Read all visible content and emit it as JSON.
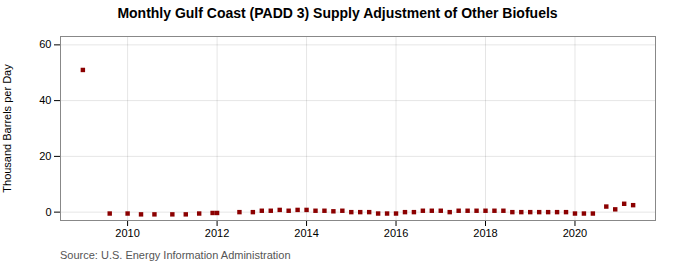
{
  "chart_data": {
    "type": "scatter",
    "title": "Monthly Gulf Coast (PADD 3) Supply Adjustment of Other Biofuels",
    "ylabel": "Thousand Barrels per Day",
    "caption": "Source: U.S. Energy Information Administration",
    "color": "#8b0000",
    "marker": "square",
    "grid": true,
    "xlim": [
      2008.5,
      2021.8
    ],
    "xticks": [
      2010,
      2012,
      2014,
      2016,
      2018,
      2020
    ],
    "ylim": [
      -3,
      63
    ],
    "yticks": [
      0,
      20,
      40,
      60
    ],
    "x": [
      2009.0,
      2009.6,
      2010.0,
      2010.3,
      2010.6,
      2011.0,
      2011.3,
      2011.6,
      2011.9,
      2012.0,
      2012.5,
      2012.8,
      2013.0,
      2013.2,
      2013.4,
      2013.6,
      2013.8,
      2014.0,
      2014.2,
      2014.4,
      2014.6,
      2014.8,
      2015.0,
      2015.2,
      2015.4,
      2015.6,
      2015.8,
      2016.0,
      2016.2,
      2016.4,
      2016.6,
      2016.8,
      2017.0,
      2017.2,
      2017.4,
      2017.6,
      2017.8,
      2018.0,
      2018.2,
      2018.4,
      2018.6,
      2018.8,
      2019.0,
      2019.2,
      2019.4,
      2019.6,
      2019.8,
      2020.0,
      2020.2,
      2020.4,
      2020.7,
      2020.9,
      2021.1,
      2021.3
    ],
    "values": [
      51.0,
      -0.5,
      -0.5,
      -0.8,
      -0.8,
      -0.8,
      -0.8,
      -0.5,
      -0.3,
      -0.3,
      0.0,
      0.0,
      0.5,
      0.5,
      0.8,
      0.5,
      0.8,
      0.8,
      0.5,
      0.5,
      0.3,
      0.5,
      0.0,
      0.0,
      0.0,
      -0.5,
      -0.5,
      -0.5,
      0.0,
      0.0,
      0.5,
      0.5,
      0.5,
      0.0,
      0.5,
      0.5,
      0.5,
      0.5,
      0.5,
      0.5,
      0.0,
      0.0,
      0.0,
      0.0,
      0.0,
      0.0,
      0.0,
      -0.5,
      -0.5,
      -0.5,
      2.0,
      1.0,
      3.0,
      2.5
    ]
  }
}
